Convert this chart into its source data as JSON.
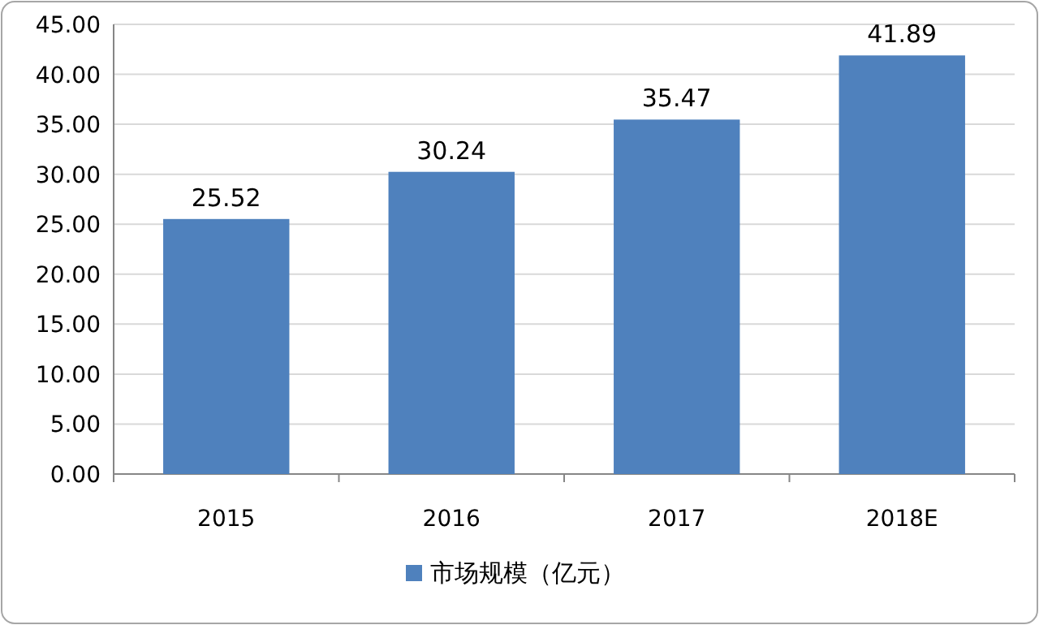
{
  "chart_data": {
    "type": "bar",
    "categories": [
      "2015",
      "2016",
      "2017",
      "2018E"
    ],
    "series": [
      {
        "name": "市场规模（亿元）",
        "color": "#4f81bd",
        "values": [
          25.52,
          30.24,
          35.47,
          41.89
        ]
      }
    ],
    "ylim": [
      0,
      45
    ],
    "yticks": [
      {
        "value": 0,
        "label": "0.00"
      },
      {
        "value": 5,
        "label": "5.00"
      },
      {
        "value": 10,
        "label": "10.00"
      },
      {
        "value": 15,
        "label": "15.00"
      },
      {
        "value": 20,
        "label": "20.00"
      },
      {
        "value": 25,
        "label": "25.00"
      },
      {
        "value": 30,
        "label": "30.00"
      },
      {
        "value": 35,
        "label": "35.00"
      },
      {
        "value": 40,
        "label": "40.00"
      },
      {
        "value": 45,
        "label": "45.00"
      }
    ],
    "grid": "y",
    "legend": "bottom",
    "data_labels": true
  }
}
